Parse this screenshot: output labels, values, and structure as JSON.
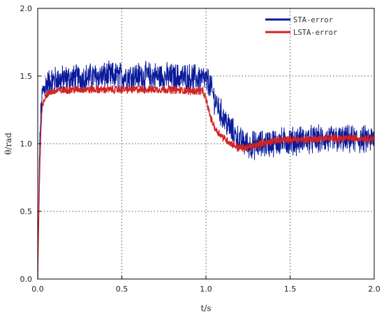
{
  "chart_data": {
    "type": "line",
    "title": "",
    "xlabel": "t/s",
    "ylabel": "θ/rad",
    "xlim": [
      0.0,
      2.0
    ],
    "ylim": [
      0.0,
      2.0
    ],
    "xticks": [
      "0.0",
      "0.5",
      "1.0",
      "1.5",
      "2.0"
    ],
    "yticks": [
      "0.0",
      "0.5",
      "1.0",
      "1.5",
      "2.0"
    ],
    "grid": true,
    "legend_position": "top-right",
    "series": [
      {
        "name": "STA-error",
        "color": "#0a1a9a",
        "noise_amplitude": 0.09,
        "x": [
          0.0,
          0.01,
          0.02,
          0.03,
          0.05,
          0.08,
          0.1,
          0.2,
          0.3,
          0.4,
          0.5,
          0.6,
          0.7,
          0.8,
          0.9,
          0.98,
          1.02,
          1.05,
          1.1,
          1.15,
          1.2,
          1.25,
          1.3,
          1.4,
          1.5,
          1.6,
          1.7,
          1.8,
          1.9,
          2.0
        ],
        "y": [
          0.0,
          0.9,
          1.25,
          1.38,
          1.44,
          1.46,
          1.47,
          1.48,
          1.49,
          1.5,
          1.5,
          1.5,
          1.5,
          1.49,
          1.49,
          1.48,
          1.45,
          1.33,
          1.2,
          1.1,
          1.02,
          0.99,
          0.99,
          1.01,
          1.02,
          1.03,
          1.03,
          1.03,
          1.03,
          1.03
        ]
      },
      {
        "name": "LSTA-error",
        "color": "#d32222",
        "noise_amplitude": 0.025,
        "x": [
          0.0,
          0.01,
          0.02,
          0.03,
          0.05,
          0.08,
          0.1,
          0.2,
          0.3,
          0.4,
          0.5,
          0.6,
          0.7,
          0.8,
          0.9,
          0.98,
          1.0,
          1.03,
          1.06,
          1.1,
          1.15,
          1.2,
          1.25,
          1.3,
          1.35,
          1.4,
          1.5,
          1.6,
          1.7,
          1.8,
          1.9,
          2.0
        ],
        "y": [
          0.0,
          0.7,
          1.15,
          1.3,
          1.36,
          1.38,
          1.39,
          1.4,
          1.4,
          1.4,
          1.4,
          1.4,
          1.4,
          1.4,
          1.39,
          1.39,
          1.33,
          1.18,
          1.1,
          1.05,
          1.0,
          0.97,
          0.97,
          0.99,
          1.01,
          1.02,
          1.03,
          1.03,
          1.04,
          1.04,
          1.04,
          1.04
        ]
      }
    ]
  }
}
